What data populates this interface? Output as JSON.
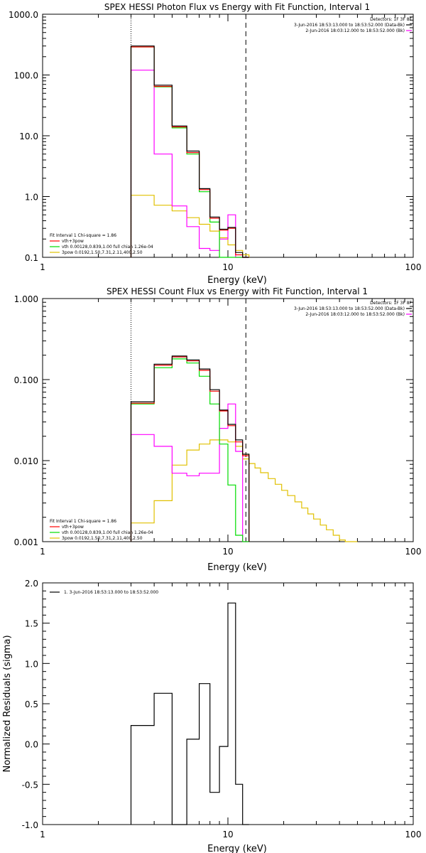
{
  "colors": {
    "data": "#000000",
    "total": "#ff0000",
    "background": "#ff00ff",
    "vth": "#00dd00",
    "3pow": "#e0c000"
  },
  "chart_data": [
    {
      "type": "line",
      "title": "SPEX HESSI Photon Flux vs Energy with Fit Function, Interval 1",
      "xlabel": "Energy (keV)",
      "ylabel": "",
      "xscale": "log",
      "yscale": "log",
      "xlim": [
        1,
        100
      ],
      "ylim": [
        0.1,
        1000
      ],
      "xtick_labels": [
        "1",
        "10",
        "100"
      ],
      "ytick_labels": [
        "0.1",
        "1.0",
        "10.0",
        "100.0",
        "1000.0"
      ],
      "detectors_label": "Detectors: 1F 3F 8F",
      "legend_right": [
        "3-Jun-2016 18:53:13.000 to 18:53:52.000 (Data-Bk)",
        "2-Jun-2016 18:03:12.000 to 18:53:52.000 (Bk)"
      ],
      "legend_left": [
        "Fit Interval 1    Chi-square = 1.86",
        "vth+3pow",
        "vth 0.00128,0.839,1.00  full chian 1.26e-04",
        "3pow 0.0192,1.50,7.31,2.11,400,2.50"
      ],
      "vlines": [
        {
          "x": 3.0,
          "style": "dotted"
        },
        {
          "x": 12.5,
          "style": "dashed"
        }
      ],
      "bin_edges": [
        3.0,
        4.0,
        5.0,
        6.0,
        7.0,
        8.0,
        9.0,
        10.0,
        11.0,
        12.0,
        13.0
      ],
      "series": [
        {
          "color": "data",
          "values": [
            300,
            68,
            14.5,
            5.6,
            1.35,
            0.46,
            0.29,
            0.31,
            0.12,
            0.1
          ]
        },
        {
          "color": "total",
          "values": [
            290,
            65,
            14.0,
            5.3,
            1.3,
            0.44,
            0.28,
            0.3,
            0.11,
            0.1
          ]
        },
        {
          "color": "vth",
          "values": [
            290,
            64,
            13.5,
            5.0,
            1.2,
            0.38,
            0.1,
            0.1,
            0.1,
            0.1
          ]
        },
        {
          "color": "background",
          "values": [
            120,
            5.0,
            0.7,
            0.32,
            0.14,
            0.13,
            0.2,
            0.5,
            0.1,
            0.1
          ]
        },
        {
          "color": "3pow",
          "values": [
            1.05,
            0.72,
            0.58,
            0.45,
            0.35,
            0.27,
            0.21,
            0.16,
            0.13,
            0.11
          ]
        }
      ]
    },
    {
      "type": "line",
      "title": "SPEX HESSI Count Flux vs Energy with Fit Function, Interval 1",
      "xlabel": "Energy (keV)",
      "ylabel": "",
      "xscale": "log",
      "yscale": "log",
      "xlim": [
        1,
        100
      ],
      "ylim": [
        0.001,
        1
      ],
      "xtick_labels": [
        "1",
        "10",
        "100"
      ],
      "ytick_labels": [
        "0.001",
        "0.010",
        "0.100",
        "1.000"
      ],
      "detectors_label": "Detectors: 1F 3F 8F",
      "legend_right": [
        "3-Jun-2016 18:53:13.000 to 18:53:52.000 (Data-Bk)",
        "2-Jun-2016 18:03:12.000 to 18:53:52.000 (Bk)"
      ],
      "legend_left": [
        "Fit Interval 1    Chi-square = 1.86",
        "vth+3pow",
        "vth 0.00128,0.839,1.00  full chian 1.26e-04",
        "3pow 0.0192,1.50,7.31,2.11,400,2.50"
      ],
      "vlines": [
        {
          "x": 3.0,
          "style": "dotted"
        },
        {
          "x": 12.5,
          "style": "dashed"
        }
      ],
      "bin_edges": [
        3.0,
        4.0,
        5.0,
        6.0,
        7.0,
        8.0,
        9.0,
        10.0,
        11.0,
        12.0,
        13.0
      ],
      "series": [
        {
          "color": "data",
          "values": [
            0.053,
            0.155,
            0.195,
            0.175,
            0.135,
            0.075,
            0.042,
            0.028,
            0.018,
            0.012
          ]
        },
        {
          "color": "total",
          "values": [
            0.051,
            0.15,
            0.19,
            0.17,
            0.13,
            0.072,
            0.041,
            0.027,
            0.017,
            0.0115
          ]
        },
        {
          "color": "vth",
          "values": [
            0.05,
            0.14,
            0.18,
            0.16,
            0.11,
            0.05,
            0.016,
            0.005,
            0.0012,
            0.001
          ]
        },
        {
          "color": "background",
          "values": [
            0.021,
            0.015,
            0.007,
            0.0065,
            0.007,
            0.007,
            0.025,
            0.05,
            0.013,
            0.001
          ]
        },
        {
          "color": "3pow",
          "values": [
            0.0017,
            0.0032,
            0.0088,
            0.0135,
            0.016,
            0.018,
            0.018,
            0.017,
            0.015,
            0.012
          ]
        }
      ],
      "tail": {
        "color": "3pow",
        "edges": [
          12.0,
          13.0,
          14.0,
          15.0,
          16.5,
          18.0,
          19.5,
          21.0,
          23.0,
          25.0,
          27.0,
          29.0,
          31.5,
          34.0,
          37.0,
          40.0,
          43.0,
          46.0,
          50.0
        ],
        "values": [
          0.0105,
          0.0092,
          0.0081,
          0.0071,
          0.006,
          0.0051,
          0.0043,
          0.0037,
          0.0031,
          0.0026,
          0.0022,
          0.0019,
          0.0016,
          0.0014,
          0.0012,
          0.00105,
          0.00095,
          0.00088
        ]
      }
    },
    {
      "type": "line",
      "title": "",
      "xlabel": "Energy (keV)",
      "ylabel": "Normalized Residuals (sigma)",
      "xscale": "log",
      "yscale": "linear",
      "xlim": [
        1,
        100
      ],
      "ylim": [
        -1.0,
        2.0
      ],
      "xtick_labels": [
        "1",
        "10",
        "100"
      ],
      "ytick_labels": [
        "-1.0",
        "-0.5",
        "0.0",
        "0.5",
        "1.0",
        "1.5",
        "2.0"
      ],
      "legend_left": [
        "1.  3-Jun-2016 18:53:13.000 to 18:53:52.000"
      ],
      "bin_edges": [
        3.0,
        4.0,
        5.0,
        6.0,
        7.0,
        8.0,
        9.0,
        10.0,
        11.0,
        12.0,
        13.0
      ],
      "series": [
        {
          "color": "data",
          "values": [
            0.23,
            0.63,
            -1.0,
            0.06,
            0.75,
            -0.6,
            -0.03,
            1.75,
            -0.5,
            -1.0
          ]
        }
      ]
    }
  ]
}
